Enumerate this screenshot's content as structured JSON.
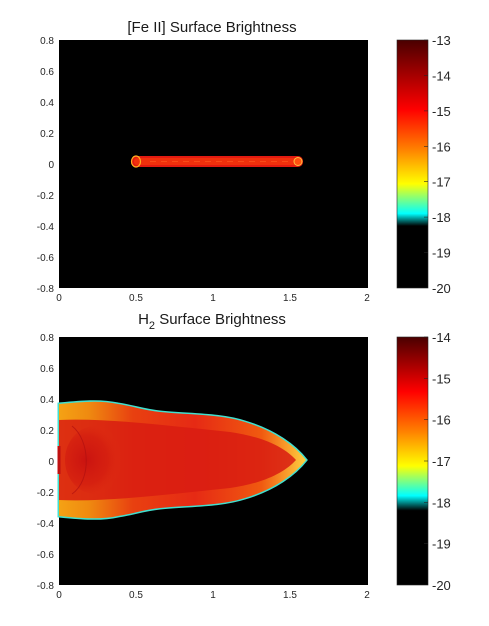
{
  "chart_data": [
    {
      "type": "heatmap",
      "title": "[Fe II] Surface Brightness",
      "xlim": [
        0,
        2
      ],
      "ylim": [
        -0.8,
        0.8
      ],
      "x_ticks": [
        "0",
        "0.5",
        "1",
        "1.5",
        "2"
      ],
      "y_ticks": [
        "0.8",
        "0.6",
        "0.4",
        "0.2",
        "0",
        "-0.2",
        "-0.4",
        "-0.6",
        "-0.8"
      ],
      "colorbar": {
        "range": [
          -20,
          -13
        ],
        "ticks": [
          "-13",
          "-14",
          "-15",
          "-16",
          "-17",
          "-18",
          "-19",
          "-20"
        ]
      },
      "background_value": -20,
      "feature": {
        "description_shape": "thin jet",
        "x_start": 0.48,
        "x_end": 1.6,
        "half_width": 0.025,
        "value": -14.3
      }
    },
    {
      "type": "heatmap",
      "title_main": "H",
      "title_sub": "2",
      "title_rest": " Surface Brightness",
      "xlim": [
        0,
        2
      ],
      "ylim": [
        -0.8,
        0.8
      ],
      "x_ticks": [
        "0",
        "0.5",
        "1",
        "1.5",
        "2"
      ],
      "y_ticks": [
        "0.8",
        "0.6",
        "0.4",
        "0.2",
        "0",
        "-0.2",
        "-0.4",
        "-0.6",
        "-0.8"
      ],
      "colorbar": {
        "range": [
          -20,
          -14
        ],
        "ticks": [
          "-14",
          "-15",
          "-16",
          "-17",
          "-18",
          "-19",
          "-20"
        ]
      },
      "background_value": -20,
      "feature": {
        "x_start": 0,
        "x_end": 1.63,
        "half_width_at_base": 0.37,
        "edge_value": -17.8,
        "interior_value": -15.4,
        "tip_value": -16.4
      }
    }
  ],
  "colors": {
    "colormap": [
      "#000000",
      "#00ffff",
      "#ffff00",
      "#ff8000",
      "#ff0000",
      "#5a0000"
    ],
    "plot_background": "#000000",
    "axis_text": "#262626"
  }
}
